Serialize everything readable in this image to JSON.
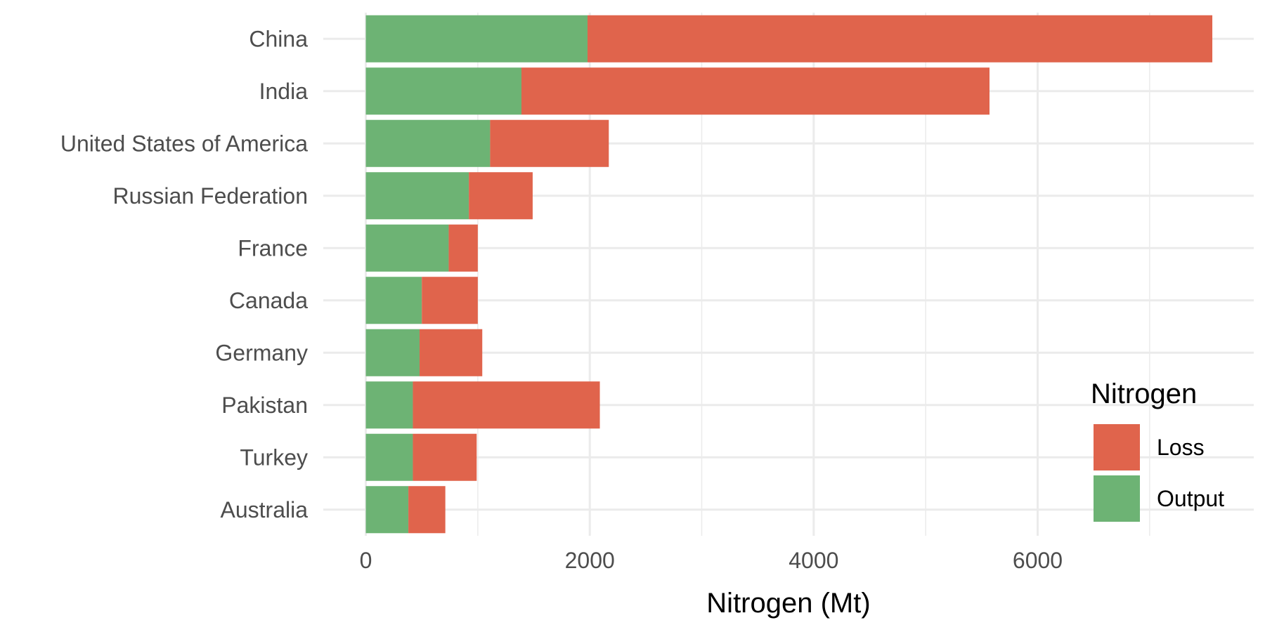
{
  "chart_data": {
    "type": "bar",
    "orientation": "horizontal",
    "stacked": true,
    "categories": [
      "China",
      "India",
      "United States of America",
      "Russian Federation",
      "France",
      "Canada",
      "Germany",
      "Pakistan",
      "Turkey",
      "Australia"
    ],
    "series": [
      {
        "name": "Output",
        "color": "#6db374",
        "values": [
          1980,
          1390,
          1110,
          920,
          740,
          500,
          480,
          420,
          420,
          380
        ]
      },
      {
        "name": "Loss",
        "color": "#e0644c",
        "values": [
          5580,
          4180,
          1060,
          570,
          260,
          500,
          560,
          1670,
          570,
          330
        ]
      }
    ],
    "xlabel": "Nitrogen (Mt)",
    "ylabel": "",
    "xlim": [
      -380,
      7930
    ],
    "x_ticks": [
      0,
      2000,
      4000,
      6000
    ],
    "x_tick_labels": [
      "0",
      "2000",
      "4000",
      "6000"
    ],
    "grid": true,
    "legend": {
      "title": "Nitrogen",
      "position": "right-bottom",
      "entries": [
        {
          "label": "Loss",
          "color": "#e0644c"
        },
        {
          "label": "Output",
          "color": "#6db374"
        }
      ]
    }
  }
}
